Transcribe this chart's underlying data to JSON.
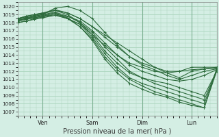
{
  "xlabel": "Pression niveau de la mer( hPa )",
  "ylim": [
    1006.5,
    1020.5
  ],
  "yticks": [
    1007,
    1008,
    1009,
    1010,
    1011,
    1012,
    1013,
    1014,
    1015,
    1016,
    1017,
    1018,
    1019,
    1020
  ],
  "xlim": [
    0,
    96
  ],
  "xtick_positions": [
    12,
    36,
    60,
    84
  ],
  "xtick_labels": [
    "Ven",
    "Sam",
    "Dim",
    "Lun"
  ],
  "bg_color": "#d4eee4",
  "grid_color": "#aad4bc",
  "line_color": "#2d6b3c",
  "figsize": [
    3.2,
    2.0
  ],
  "dpi": 100,
  "lines": [
    {
      "x": [
        0,
        4,
        8,
        12,
        18,
        24,
        30,
        36,
        42,
        48,
        54,
        60,
        66,
        72,
        78,
        84,
        90,
        96
      ],
      "y": [
        1018.5,
        1018.8,
        1019.0,
        1019.2,
        1019.5,
        1019.2,
        1018.5,
        1017.5,
        1016.5,
        1015.5,
        1014.5,
        1013.5,
        1012.5,
        1011.8,
        1011.2,
        1012.0,
        1012.3,
        1012.5
      ]
    },
    {
      "x": [
        0,
        4,
        8,
        12,
        18,
        24,
        30,
        36,
        42,
        48,
        54,
        60,
        66,
        72,
        78,
        84,
        90,
        96
      ],
      "y": [
        1018.3,
        1018.5,
        1018.8,
        1019.0,
        1019.8,
        1020.0,
        1019.5,
        1018.5,
        1016.8,
        1015.2,
        1013.8,
        1012.8,
        1012.2,
        1011.5,
        1011.0,
        1011.5,
        1012.0,
        1012.3
      ]
    },
    {
      "x": [
        0,
        4,
        8,
        12,
        18,
        24,
        30,
        36,
        42,
        48,
        54,
        60,
        66,
        72,
        78,
        84,
        90,
        96
      ],
      "y": [
        1018.2,
        1018.4,
        1018.6,
        1018.8,
        1019.0,
        1018.8,
        1018.2,
        1017.0,
        1015.5,
        1014.0,
        1013.0,
        1012.5,
        1012.0,
        1011.8,
        1012.0,
        1012.5,
        1012.5,
        1012.5
      ]
    },
    {
      "x": [
        0,
        4,
        8,
        12,
        18,
        24,
        30,
        36,
        42,
        48,
        54,
        60,
        66,
        72,
        78,
        84,
        90,
        96
      ],
      "y": [
        1018.5,
        1018.7,
        1018.9,
        1019.1,
        1019.5,
        1019.0,
        1018.0,
        1016.5,
        1014.5,
        1013.0,
        1011.8,
        1011.2,
        1010.8,
        1010.5,
        1010.0,
        1009.5,
        1009.0,
        1012.0
      ]
    },
    {
      "x": [
        0,
        4,
        8,
        12,
        18,
        24,
        30,
        36,
        42,
        48,
        54,
        60,
        66,
        72,
        78,
        84,
        90,
        96
      ],
      "y": [
        1018.0,
        1018.2,
        1018.4,
        1018.6,
        1018.9,
        1018.5,
        1017.8,
        1016.2,
        1014.2,
        1012.5,
        1011.2,
        1010.5,
        1010.0,
        1009.5,
        1009.0,
        1008.5,
        1008.0,
        1012.2
      ]
    },
    {
      "x": [
        0,
        4,
        8,
        12,
        18,
        24,
        30,
        36,
        42,
        48,
        54,
        60,
        66,
        72,
        78,
        84,
        90,
        96
      ],
      "y": [
        1018.4,
        1018.6,
        1018.8,
        1019.0,
        1019.3,
        1018.8,
        1018.0,
        1016.8,
        1015.0,
        1013.5,
        1012.0,
        1011.2,
        1010.5,
        1010.0,
        1009.5,
        1009.0,
        1008.5,
        1012.0
      ]
    },
    {
      "x": [
        0,
        4,
        8,
        12,
        18,
        24,
        30,
        36,
        42,
        48,
        54,
        60,
        66,
        72,
        78,
        84,
        90,
        96
      ],
      "y": [
        1018.2,
        1018.4,
        1018.6,
        1018.8,
        1019.2,
        1018.6,
        1017.5,
        1016.0,
        1013.8,
        1012.2,
        1011.0,
        1010.2,
        1009.5,
        1009.0,
        1008.5,
        1008.0,
        1007.5,
        1012.3
      ]
    },
    {
      "x": [
        0,
        4,
        8,
        12,
        18,
        24,
        30,
        36,
        42,
        48,
        54,
        60,
        66,
        72,
        78,
        84,
        90,
        96
      ],
      "y": [
        1018.5,
        1018.8,
        1019.0,
        1019.2,
        1019.6,
        1019.2,
        1018.5,
        1017.5,
        1016.2,
        1015.0,
        1013.8,
        1013.0,
        1012.5,
        1012.0,
        1012.0,
        1012.2,
        1012.3,
        1012.4
      ]
    },
    {
      "x": [
        0,
        4,
        8,
        12,
        18,
        24,
        30,
        36,
        42,
        48,
        54,
        60,
        66,
        72,
        78,
        84,
        90,
        96
      ],
      "y": [
        1018.3,
        1018.5,
        1018.7,
        1018.9,
        1019.2,
        1018.5,
        1017.5,
        1015.8,
        1013.5,
        1011.8,
        1010.5,
        1009.8,
        1009.2,
        1008.8,
        1008.2,
        1007.8,
        1007.5,
        1012.0
      ]
    },
    {
      "x": [
        0,
        4,
        8,
        12,
        18,
        24,
        30,
        36,
        42,
        48,
        54,
        60,
        66,
        72,
        78,
        84,
        90,
        96
      ],
      "y": [
        1018.0,
        1018.2,
        1018.5,
        1018.7,
        1019.0,
        1018.5,
        1017.8,
        1016.5,
        1015.2,
        1014.0,
        1012.8,
        1012.0,
        1011.5,
        1011.0,
        1010.8,
        1011.0,
        1011.5,
        1012.2
      ]
    }
  ]
}
